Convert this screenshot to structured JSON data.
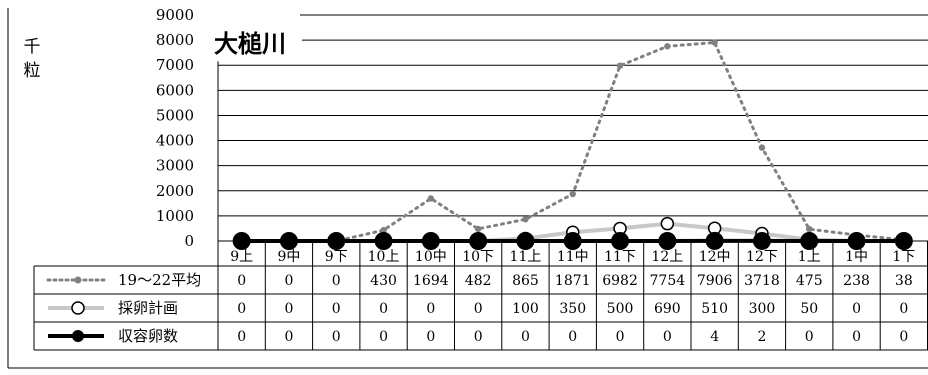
{
  "chart_data": {
    "type": "line",
    "title": "大槌川",
    "ylabel": "千粒",
    "ylim": [
      0,
      9000
    ],
    "yticks": [
      0,
      1000,
      2000,
      3000,
      4000,
      5000,
      6000,
      7000,
      8000,
      9000
    ],
    "categories": [
      "9上",
      "9中",
      "9下",
      "10上",
      "10中",
      "10下",
      "11上",
      "11中",
      "11下",
      "12上",
      "12中",
      "12下",
      "1上",
      "1中",
      "1下"
    ],
    "grid": true,
    "legend": "data-table",
    "series": [
      {
        "name": "19～22平均",
        "style": "dotted",
        "color": "#808080",
        "values": [
          0,
          0,
          0,
          430,
          1694,
          482,
          865,
          1871,
          6982,
          7754,
          7906,
          3718,
          475,
          238,
          38
        ]
      },
      {
        "name": "採卵計画",
        "style": "solid-open-marker",
        "color": "#c8c8c8",
        "values": [
          0,
          0,
          0,
          0,
          0,
          0,
          100,
          350,
          500,
          690,
          510,
          300,
          50,
          0,
          0
        ]
      },
      {
        "name": "収容卵数",
        "style": "solid-filled-marker",
        "color": "#000000",
        "values": [
          0,
          0,
          0,
          0,
          0,
          0,
          0,
          0,
          0,
          0,
          4,
          2,
          0,
          0,
          0
        ]
      }
    ]
  }
}
